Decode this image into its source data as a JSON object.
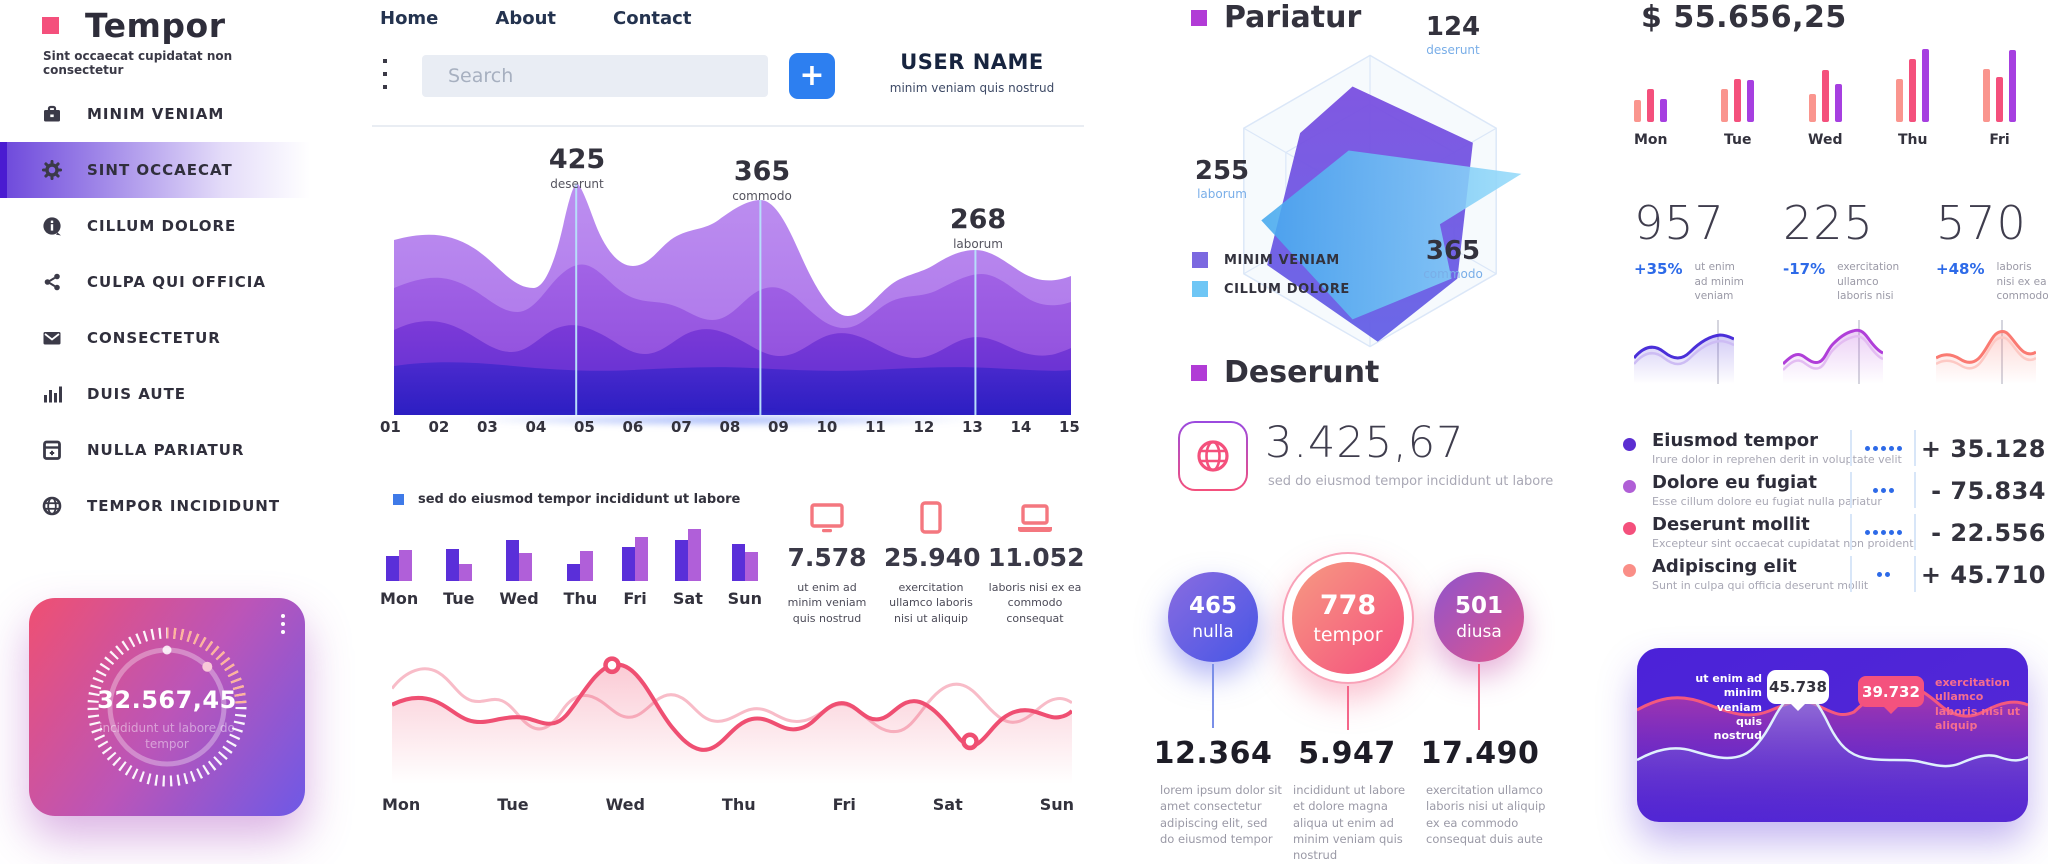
{
  "colors": {
    "brand_pink": "#f4507c",
    "active_purple": "#4a1bd1",
    "accent_blue": "#2d7ff0",
    "delta_blue": "#2d6ae8",
    "section_square": "#b13bd6"
  },
  "sidebar": {
    "logo_text": "Tempor",
    "logo_tagline": "Sint occaecat cupidatat non consectetur",
    "items": [
      {
        "label": "MINIM VENIAM",
        "icon": "briefcase-icon",
        "active": false
      },
      {
        "label": "SINT OCCAECAT",
        "icon": "gear-icon",
        "active": true
      },
      {
        "label": "CILLUM DOLORE",
        "icon": "info-icon",
        "active": false
      },
      {
        "label": "CULPA QUI OFFICIA",
        "icon": "share-icon",
        "active": false
      },
      {
        "label": "CONSECTETUR",
        "icon": "mail-icon",
        "active": false
      },
      {
        "label": "DUIS AUTE",
        "icon": "bar-chart-icon",
        "active": false
      },
      {
        "label": "NULLA PARIATUR",
        "icon": "calculator-icon",
        "active": false
      },
      {
        "label": "TEMPOR INCIDIDUNT",
        "icon": "globe-icon",
        "active": false
      }
    ],
    "gauge_card": {
      "value": "32.567,45",
      "subtitle": "incididunt ut labore do tempor"
    }
  },
  "topbar": {
    "nav": [
      {
        "label": "Home"
      },
      {
        "label": "About"
      },
      {
        "label": "Contact"
      }
    ],
    "search_placeholder": "Search",
    "add_button_label": "+",
    "user_name": "USER NAME",
    "user_subtitle": "minim veniam quis nostrud"
  },
  "device_stats": [
    {
      "icon": "monitor-icon",
      "value": "7.578",
      "caption": "ut enim ad minim veniam quis nostrud"
    },
    {
      "icon": "tablet-icon",
      "value": "25.940",
      "caption": "exercitation ullamco laboris nisi ut aliquip"
    },
    {
      "icon": "laptop-icon",
      "value": "11.052",
      "caption": "laboris nisi ex ea commodo consequat"
    }
  ],
  "radar_section": {
    "title": "Pariatur"
  },
  "deserunt_section": {
    "title": "Deserunt",
    "icon": "globe-icon",
    "value": "3.425,67",
    "caption": "sed do eiusmod tempor incididunt ut labore"
  },
  "bubble_stats": [
    {
      "bubble_value": "465",
      "bubble_label": "nulla",
      "value": "12.364",
      "caption": "lorem ipsum dolor sit amet consectetur adipiscing elit, sed do eiusmod tempor"
    },
    {
      "bubble_value": "778",
      "bubble_label": "tempor",
      "value": "5.947",
      "caption": "incididunt ut labore et dolore magna aliqua ut enim ad minim veniam quis nostrud"
    },
    {
      "bubble_value": "501",
      "bubble_label": "diusa",
      "value": "17.490",
      "caption": "exercitation ullamco laboris nisi ut aliquip ex ea commodo consequat duis aute"
    }
  ],
  "right_panel": {
    "total": "$ 55.656,25",
    "trend_stats": [
      {
        "value": "957",
        "delta": "+35%",
        "caption": "ut enim ad minim veniam",
        "color": "#4a2fd9"
      },
      {
        "value": "225",
        "delta": "-17%",
        "caption": "exercitation ullamco laboris nisi",
        "color": "#b03fd9"
      },
      {
        "value": "570",
        "delta": "+48%",
        "caption": "laboris nisi ex ea commodo",
        "color": "#fa7a72"
      }
    ],
    "list": [
      {
        "title": "Eiusmod tempor",
        "subtitle": "Irure dolor in reprehen derit in voluptate velit",
        "dots": 5,
        "value": "+ 35.128",
        "color": "#5b2ed1"
      },
      {
        "title": "Dolore eu fugiat",
        "subtitle": "Esse cillum dolore eu fugiat nulla pariatur",
        "dots": 3,
        "value": "- 75.834",
        "color": "#b05fd6"
      },
      {
        "title": "Deserunt mollit",
        "subtitle": "Excepteur sint occaecat cupidatat non proident",
        "dots": 5,
        "value": "- 22.556",
        "color": "#f4507c"
      },
      {
        "title": "Adipiscing elit",
        "subtitle": "Sunt in culpa qui officia deserunt mollit",
        "dots": 2,
        "value": "+ 45.710",
        "color": "#fa8e87"
      }
    ],
    "wave_card": {
      "left_caption": "ut enim ad minim veniam quis nostrud",
      "tooltip_white": "45.738",
      "tooltip_pink": "39.732",
      "right_caption": "exercitation ullamco laboris nisi ut aliquip"
    }
  },
  "chart_data": [
    {
      "id": "main_area",
      "type": "area",
      "x_labels": [
        "01",
        "02",
        "03",
        "04",
        "05",
        "06",
        "07",
        "08",
        "09",
        "10",
        "11",
        "12",
        "13",
        "14",
        "15"
      ],
      "annotations": [
        {
          "x": "05",
          "value": 425,
          "label": "deserunt"
        },
        {
          "x": "08",
          "value": 365,
          "label": "commodo"
        },
        {
          "x": "13",
          "value": 268,
          "label": "laborum"
        }
      ],
      "palette": [
        "#b78ce8",
        "#9b5ce2",
        "#7a3ad8",
        "#3c23c6"
      ],
      "note": "four stacked purple wave layers with light-blue vertical markers at annotated peaks"
    },
    {
      "id": "weekly_bars",
      "type": "bar",
      "legend": "sed do eiusmod tempor incididunt ut labore",
      "legend_color": "#3f7ae8",
      "categories": [
        "Mon",
        "Tue",
        "Wed",
        "Thu",
        "Fri",
        "Sat",
        "Sun"
      ],
      "series": [
        {
          "name": "series-a",
          "color": "#5a2fd9",
          "values": [
            48,
            62,
            79,
            33,
            65,
            79,
            71
          ]
        },
        {
          "name": "series-b",
          "color": "#b05fd9",
          "values": [
            60,
            33,
            54,
            58,
            85,
            100,
            56
          ]
        }
      ],
      "ylim": [
        0,
        100
      ]
    },
    {
      "id": "weekly_line",
      "type": "line",
      "categories": [
        "Mon",
        "Tue",
        "Wed",
        "Thu",
        "Fri",
        "Sat",
        "Sun"
      ],
      "series": [
        {
          "name": "primary",
          "color": "#ef4f72",
          "values": [
            60,
            48,
            95,
            30,
            55,
            22,
            52
          ]
        },
        {
          "name": "secondary",
          "color": "#f8bcc8",
          "values": [
            75,
            55,
            40,
            60,
            45,
            70,
            40
          ]
        }
      ],
      "markers": [
        {
          "category": "Wed",
          "series": "primary",
          "type": "peak"
        },
        {
          "category": "Sat",
          "series": "primary",
          "type": "dip"
        }
      ]
    },
    {
      "id": "radar",
      "type": "radar",
      "axes": [
        "deserunt",
        "laborum",
        "commodo"
      ],
      "annotations": [
        {
          "axis": "deserunt",
          "value": 124
        },
        {
          "axis": "laborum",
          "value": 255
        },
        {
          "axis": "commodo",
          "value": 365
        }
      ],
      "series": [
        {
          "name": "MINIM VENIAM",
          "color": "#7b68e0"
        },
        {
          "name": "CILLUM DOLORE",
          "color": "#6ec6f5"
        }
      ]
    },
    {
      "id": "daily_bars",
      "type": "bar",
      "categories": [
        "Mon",
        "Tue",
        "Wed",
        "Thu",
        "Fri"
      ],
      "series": [
        {
          "name": "series-1",
          "color": "#fa958e",
          "values": [
            30,
            45,
            38,
            59,
            73
          ]
        },
        {
          "name": "series-2",
          "color": "#f4507c",
          "values": [
            45,
            59,
            71,
            86,
            62
          ]
        },
        {
          "name": "series-3",
          "color": "#a63fe0",
          "values": [
            32,
            58,
            52,
            100,
            99
          ]
        }
      ],
      "ylim": [
        0,
        100
      ]
    },
    {
      "id": "trend_sparklines",
      "type": "line",
      "series": [
        {
          "name": "957",
          "color": "#4a2fd9",
          "trend": "+35%"
        },
        {
          "name": "225",
          "color": "#b03fd9",
          "trend": "-17%"
        },
        {
          "name": "570",
          "color": "#fa7a72",
          "trend": "+48%"
        }
      ]
    },
    {
      "id": "wave_card",
      "type": "area",
      "series": [
        {
          "name": "blue",
          "color": "#cfe9fb",
          "peak_label": "45.738"
        },
        {
          "name": "pink",
          "color": "#f4587e",
          "peak_label": "39.732"
        }
      ]
    }
  ]
}
